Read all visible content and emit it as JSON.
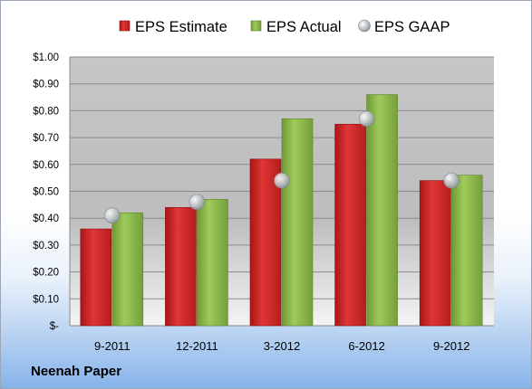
{
  "company": "Neenah Paper",
  "colors": {
    "estimate": "#d42a2a",
    "actual": "#8dba4a",
    "gaap": "#b9bec6"
  },
  "chart_data": {
    "type": "bar",
    "categories": [
      "9-2011",
      "12-2011",
      "3-2012",
      "6-2012",
      "9-2012"
    ],
    "series": [
      {
        "name": "EPS Estimate",
        "kind": "bar",
        "values": [
          0.36,
          0.44,
          0.62,
          0.75,
          0.54
        ]
      },
      {
        "name": "EPS Actual",
        "kind": "bar",
        "values": [
          0.42,
          0.47,
          0.77,
          0.86,
          0.56
        ]
      },
      {
        "name": "EPS GAAP",
        "kind": "marker",
        "values": [
          0.41,
          0.46,
          0.54,
          0.77,
          0.54
        ]
      }
    ],
    "ylim": [
      0,
      1.0
    ],
    "ytick_labels": [
      "$-",
      "$0.10",
      "$0.20",
      "$0.30",
      "$0.40",
      "$0.50",
      "$0.60",
      "$0.70",
      "$0.80",
      "$0.90",
      "$1.00"
    ],
    "grid": true,
    "legend_position": "top"
  }
}
